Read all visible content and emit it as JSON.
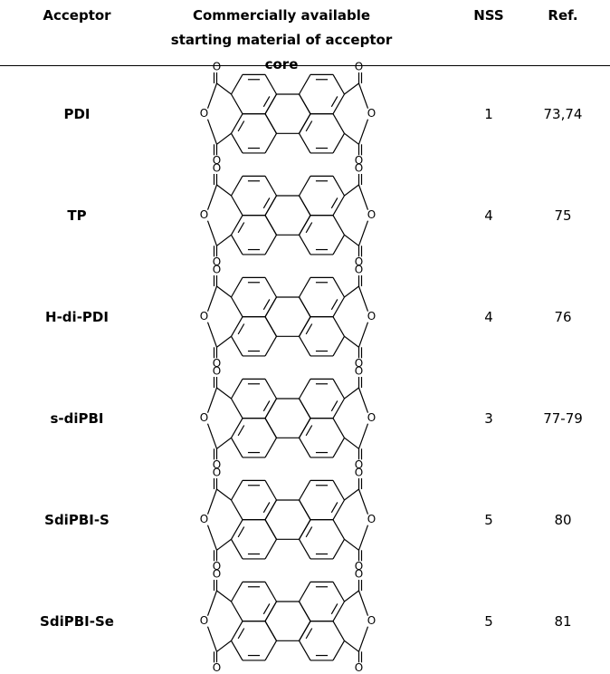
{
  "table": {
    "headers": [
      "Acceptor",
      "Commercially available starting material of acceptor core",
      "NSS",
      "Ref."
    ],
    "atom_label": "O",
    "rows": [
      [
        "PDI",
        1,
        "73,74"
      ],
      [
        "TP",
        4,
        "75"
      ],
      [
        "H-di-PDI",
        4,
        "76"
      ],
      [
        "s-diPBI",
        3,
        "77-79"
      ],
      [
        "SdiPBI-S",
        5,
        "80"
      ],
      [
        "SdiPBI-Se",
        5,
        "81"
      ]
    ]
  }
}
